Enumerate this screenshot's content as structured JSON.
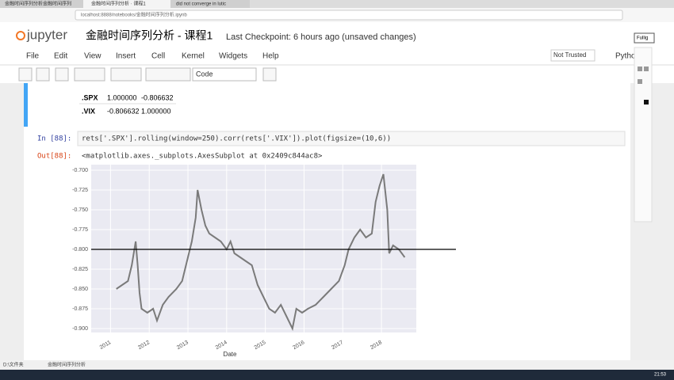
{
  "browser": {
    "tabs": [
      "金融时间序列分析金融时间序列",
      "金融时间序列分析 · 课程1",
      "did not converge in lutic"
    ],
    "address": "localhost:8888/notebooks/金融时间序列分析.ipynb"
  },
  "header": {
    "logo": "jupyter",
    "title": "金融时间序列分析 - 课程1",
    "checkpoint": "Last Checkpoint: 6 hours ago (unsaved changes)"
  },
  "menu": [
    "File",
    "Edit",
    "View",
    "Insert",
    "Cell",
    "Kernel",
    "Widgets",
    "Help"
  ],
  "trusted": "Not Trusted",
  "kernel": "Python",
  "tooltip": "Fullig",
  "toolbar": {
    "cell_type": "Code"
  },
  "table": {
    "rows": [
      [
        ".SPX",
        "1.000000",
        "-0.806632"
      ],
      [
        ".VIX",
        "-0.806632",
        "1.000000"
      ]
    ]
  },
  "cells": [
    {
      "prompt": "In [88]:",
      "code": "rets['.SPX'].rolling(window=250).corr(rets['.VIX']).plot(figsize=(10,6))"
    },
    {
      "prompt": "Out[88]:",
      "text": "<matplotlib.axes._subplots.AxesSubplot at 0x2409c844ac8>"
    }
  ],
  "chart_data": {
    "type": "line",
    "xlabel": "Date",
    "x": [
      2011.15,
      2011.3,
      2011.45,
      2011.55,
      2011.65,
      2011.7,
      2011.75,
      2011.8,
      2011.95,
      2012.1,
      2012.2,
      2012.35,
      2012.5,
      2012.7,
      2012.85,
      2013.0,
      2013.1,
      2013.2,
      2013.25,
      2013.35,
      2013.45,
      2013.55,
      2013.7,
      2013.85,
      2014.0,
      2014.1,
      2014.2,
      2014.35,
      2014.5,
      2014.65,
      2014.8,
      2014.95,
      2015.1,
      2015.25,
      2015.4,
      2015.55,
      2015.7,
      2015.8,
      2015.95,
      2016.1,
      2016.3,
      2016.5,
      2016.7,
      2016.9,
      2017.05,
      2017.15,
      2017.3,
      2017.45,
      2017.6,
      2017.75,
      2017.85,
      2017.95,
      2018.05,
      2018.15,
      2018.2,
      2018.3,
      2018.45,
      2018.6
    ],
    "series": [
      {
        "color": "#7a7a7a",
        "values": [
          -0.85,
          -0.845,
          -0.84,
          -0.82,
          -0.79,
          -0.82,
          -0.855,
          -0.875,
          -0.88,
          -0.875,
          -0.89,
          -0.87,
          -0.86,
          -0.85,
          -0.84,
          -0.81,
          -0.79,
          -0.76,
          -0.725,
          -0.75,
          -0.77,
          -0.78,
          -0.785,
          -0.79,
          -0.8,
          -0.79,
          -0.805,
          -0.81,
          -0.815,
          -0.82,
          -0.845,
          -0.86,
          -0.875,
          -0.88,
          -0.87,
          -0.885,
          -0.9,
          -0.875,
          -0.88,
          -0.875,
          -0.87,
          -0.86,
          -0.85,
          -0.84,
          -0.82,
          -0.8,
          -0.785,
          -0.775,
          -0.785,
          -0.78,
          -0.74,
          -0.72,
          -0.705,
          -0.75,
          -0.805,
          -0.795,
          -0.8,
          -0.81
        ]
      }
    ],
    "hline": -0.8,
    "hline_color": "#000000",
    "xlim": [
      2010.5,
      2018.9
    ],
    "xticks": [
      2011,
      2012,
      2013,
      2014,
      2015,
      2016,
      2017,
      2018
    ],
    "ylim": [
      -0.905,
      -0.693
    ],
    "yticks": [
      {
        "value": -0.7,
        "label": "-0.700"
      },
      {
        "value": -0.725,
        "label": "-0.725"
      },
      {
        "value": -0.75,
        "label": "-0.750"
      },
      {
        "value": -0.775,
        "label": "-0.775"
      },
      {
        "value": -0.8,
        "label": "-0.800"
      },
      {
        "value": -0.825,
        "label": "-0.825"
      },
      {
        "value": -0.85,
        "label": "-0.850"
      },
      {
        "value": -0.875,
        "label": "-0.875"
      },
      {
        "value": -0.9,
        "label": "-0.900"
      }
    ],
    "grid": true,
    "background": "#eaeaf2"
  },
  "taskbar": {
    "items": [
      "D:\\文件夹",
      "金融时间序列分析"
    ],
    "clock": "21:53"
  }
}
